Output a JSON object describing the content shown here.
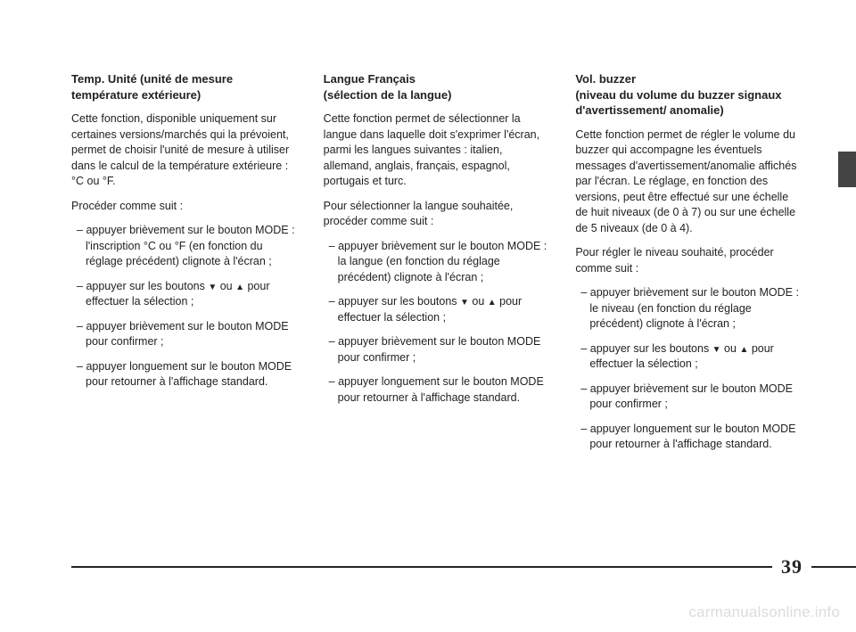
{
  "col1": {
    "heading": "Temp. Unité (unité de mesure température extérieure)",
    "p1": "Cette fonction, disponible uniquement sur certaines versions/marchés qui la prévoient, permet de choisir l'unité de mesure à utiliser dans le calcul de la température extérieure : °C ou °F.",
    "p2": "Procéder comme suit :",
    "li1": "appuyer brièvement sur le bouton MODE : l'inscription °C ou °F (en fonction du réglage précédent) clignote à l'écran ;",
    "li2_before": "appuyer sur les boutons ",
    "li2_mid": " ou ",
    "li2_after": " pour effectuer la sélection ;",
    "li3": "appuyer brièvement sur le bouton MODE pour confirmer ;",
    "li4": "appuyer longuement sur le bouton MODE pour retourner à l'affichage standard."
  },
  "col2": {
    "heading": "Langue Français\n(sélection de la langue)",
    "p1": "Cette fonction permet de sélectionner la langue dans laquelle doit s'exprimer l'écran, parmi les langues suivantes : italien, allemand, anglais, français, espagnol, portugais et turc.",
    "p2": "Pour sélectionner la langue souhaitée, procéder comme suit :",
    "li1": "appuyer brièvement sur le bouton MODE : la langue (en fonction du réglage précédent) clignote à l'écran ;",
    "li2_before": "appuyer sur les boutons ",
    "li2_mid": " ou ",
    "li2_after": " pour effectuer la sélection ;",
    "li3": "appuyer brièvement sur le bouton MODE pour confirmer ;",
    "li4": "appuyer longuement sur le bouton MODE pour retourner à l'affichage standard."
  },
  "col3": {
    "heading": "Vol. buzzer\n(niveau du volume du buzzer signaux d'avertissement/ anomalie)",
    "p1": "Cette fonction permet de régler le volume du buzzer qui accompagne les éventuels messages d'avertissement/anomalie affichés par l'écran. Le réglage, en fonction des versions, peut être effectué sur une échelle de huit niveaux (de 0 à 7) ou sur une échelle de 5 niveaux (de 0 à 4).",
    "p2": "Pour régler le niveau souhaité, procéder comme suit :",
    "li1": "appuyer brièvement sur le bouton MODE : le niveau (en fonction du réglage précédent) clignote à l'écran ;",
    "li2_before": "appuyer sur les boutons ",
    "li2_mid": " ou ",
    "li2_after": " pour effectuer la sélection ;",
    "li3": "appuyer brièvement sur le bouton MODE pour confirmer ;",
    "li4": "appuyer longuement sur le bouton MODE pour retourner à l'affichage standard."
  },
  "arrows": {
    "down": "▼",
    "up": "▲"
  },
  "page_number": "39",
  "watermark": "carmanualsonline.info",
  "colors": {
    "text": "#222222",
    "background": "#ffffff",
    "tab": "#444444",
    "watermark": "#dcdcdc"
  }
}
